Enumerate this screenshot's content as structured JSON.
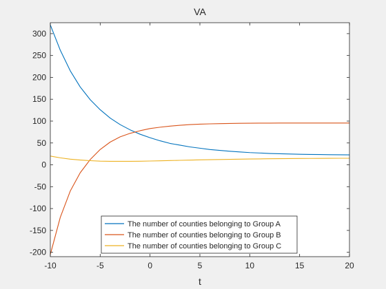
{
  "chart_data": {
    "type": "line",
    "title": "VA",
    "xlabel": "t",
    "ylabel": "",
    "xlim": [
      -10,
      20
    ],
    "ylim": [
      -210,
      325
    ],
    "xticks": [
      -10,
      -5,
      0,
      5,
      10,
      15,
      20
    ],
    "yticks": [
      -200,
      -150,
      -100,
      -50,
      0,
      50,
      100,
      150,
      200,
      250,
      300
    ],
    "grid": false,
    "legend_position": "bottom-center",
    "colors": {
      "series_a": "#0072BD",
      "series_b": "#D95319",
      "series_c": "#EDB120"
    },
    "x": [
      -10,
      -9,
      -8,
      -7,
      -6,
      -5,
      -4,
      -3,
      -2,
      -1,
      0,
      1,
      2,
      3,
      4,
      5,
      6,
      7,
      8,
      9,
      10,
      11,
      12,
      13,
      14,
      15,
      16,
      17,
      18,
      19,
      20
    ],
    "series": [
      {
        "name": "The number of counties belonging to Group A",
        "values": [
          320,
          262,
          215,
          178,
          149,
          126,
          107,
          92,
          80,
          70,
          62,
          55,
          49,
          45,
          41,
          38,
          35,
          33,
          31,
          29.5,
          28,
          27,
          26,
          25.3,
          24.7,
          24.2,
          23.8,
          23.5,
          23.2,
          23,
          22.8
        ]
      },
      {
        "name": "The number of counties belonging to Group B",
        "values": [
          -205,
          -120,
          -60,
          -18,
          12,
          35,
          52,
          64,
          72,
          78,
          83,
          86,
          88.5,
          90.5,
          92,
          93,
          93.7,
          94.2,
          94.6,
          94.9,
          95.1,
          95.3,
          95.4,
          95.5,
          95.6,
          95.6,
          95.6,
          95.6,
          95.6,
          95.5,
          95.5
        ]
      },
      {
        "name": "The number of counties belonging to Group C",
        "values": [
          20,
          16,
          13,
          11,
          9.5,
          8.5,
          8,
          8,
          8,
          8.3,
          8.7,
          9.2,
          9.8,
          10.3,
          10.8,
          11.3,
          11.8,
          12.2,
          12.6,
          13,
          13.3,
          13.6,
          13.9,
          14.1,
          14.3,
          14.5,
          14.6,
          14.8,
          14.9,
          15,
          15
        ]
      }
    ]
  }
}
